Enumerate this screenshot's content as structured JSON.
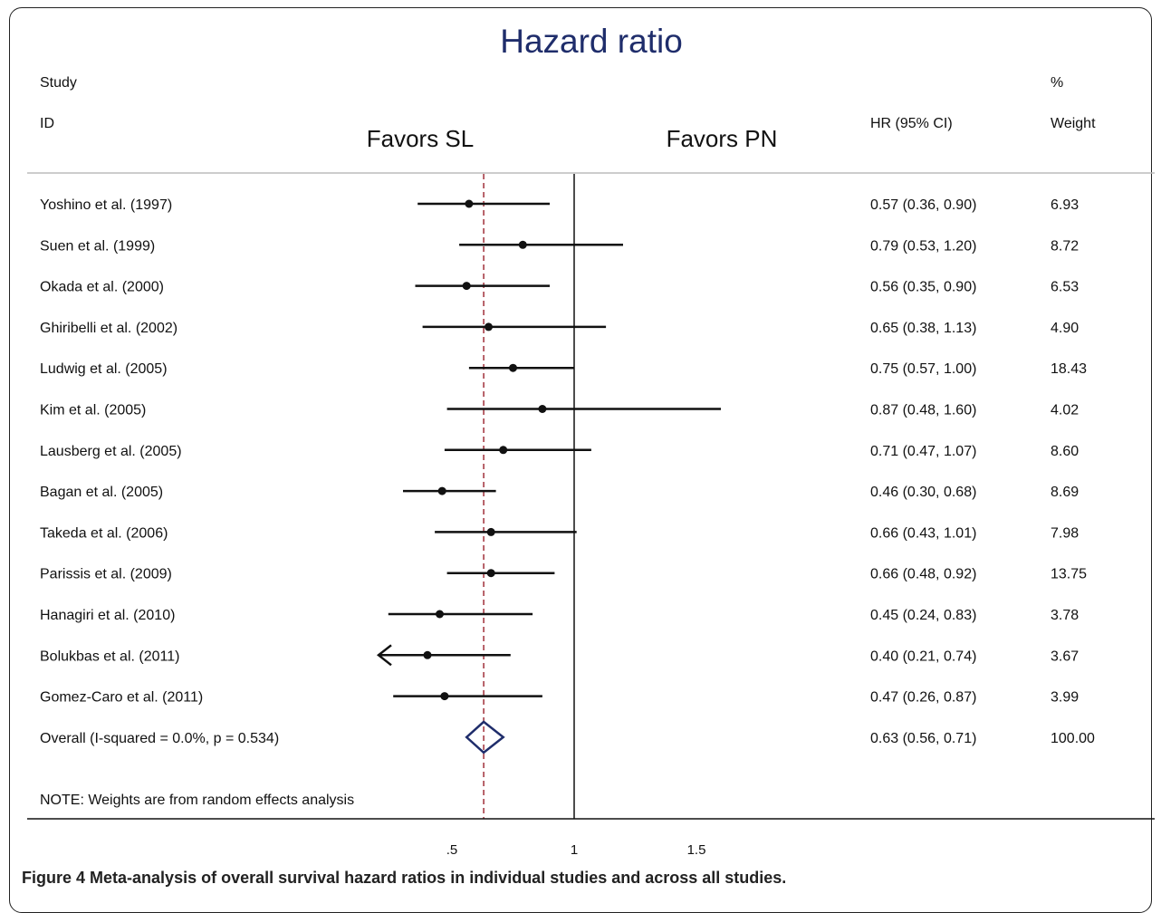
{
  "chart_data": {
    "type": "forest",
    "title": "Hazard ratio",
    "favor_left": "Favors SL",
    "favor_right": "Favors PN",
    "header": {
      "study": "Study",
      "id": "ID",
      "hr_ci": "HR (95% CI)",
      "pct": "%",
      "weight": "Weight"
    },
    "xaxis": {
      "ticks": [
        0.5,
        1,
        1.5
      ],
      "tick_labels": [
        ".5",
        "1",
        "1.5"
      ],
      "min": 0.2,
      "max": 1.6,
      "reference": 1
    },
    "overall_line": 0.63,
    "studies": [
      {
        "label": "Yoshino et al. (1997)",
        "hr": 0.57,
        "lo": 0.36,
        "hi": 0.9,
        "hr_text": "0.57 (0.36, 0.90)",
        "weight": "6.93"
      },
      {
        "label": "Suen et al. (1999)",
        "hr": 0.79,
        "lo": 0.53,
        "hi": 1.2,
        "hr_text": "0.79 (0.53, 1.20)",
        "weight": "8.72"
      },
      {
        "label": "Okada et al. (2000)",
        "hr": 0.56,
        "lo": 0.35,
        "hi": 0.9,
        "hr_text": "0.56 (0.35, 0.90)",
        "weight": "6.53"
      },
      {
        "label": "Ghiribelli et al. (2002)",
        "hr": 0.65,
        "lo": 0.38,
        "hi": 1.13,
        "hr_text": "0.65 (0.38, 1.13)",
        "weight": "4.90"
      },
      {
        "label": "Ludwig et al. (2005)",
        "hr": 0.75,
        "lo": 0.57,
        "hi": 1.0,
        "hr_text": "0.75 (0.57, 1.00)",
        "weight": "18.43"
      },
      {
        "label": "Kim et al. (2005)",
        "hr": 0.87,
        "lo": 0.48,
        "hi": 1.6,
        "hr_text": "0.87 (0.48, 1.60)",
        "weight": "4.02"
      },
      {
        "label": "Lausberg et al. (2005)",
        "hr": 0.71,
        "lo": 0.47,
        "hi": 1.07,
        "hr_text": "0.71 (0.47, 1.07)",
        "weight": "8.60"
      },
      {
        "label": "Bagan et al. (2005)",
        "hr": 0.46,
        "lo": 0.3,
        "hi": 0.68,
        "hr_text": "0.46 (0.30, 0.68)",
        "weight": "8.69"
      },
      {
        "label": "Takeda et al. (2006)",
        "hr": 0.66,
        "lo": 0.43,
        "hi": 1.01,
        "hr_text": "0.66 (0.43, 1.01)",
        "weight": "7.98"
      },
      {
        "label": "Parissis et al. (2009)",
        "hr": 0.66,
        "lo": 0.48,
        "hi": 0.92,
        "hr_text": "0.66 (0.48, 0.92)",
        "weight": "13.75"
      },
      {
        "label": "Hanagiri et al. (2010)",
        "hr": 0.45,
        "lo": 0.24,
        "hi": 0.83,
        "hr_text": "0.45 (0.24, 0.83)",
        "weight": "3.78"
      },
      {
        "label": "Bolukbas et al. (2011)",
        "hr": 0.4,
        "lo": 0.21,
        "hi": 0.74,
        "hr_text": "0.40 (0.21, 0.74)",
        "weight": "3.67",
        "arrow_left": true
      },
      {
        "label": "Gomez-Caro et al. (2011)",
        "hr": 0.47,
        "lo": 0.26,
        "hi": 0.87,
        "hr_text": "0.47 (0.26, 0.87)",
        "weight": "3.99"
      }
    ],
    "overall": {
      "label": "Overall  (I-squared = 0.0%, p = 0.534)",
      "hr": 0.63,
      "lo": 0.56,
      "hi": 0.71,
      "hr_text": "0.63 (0.56, 0.71)",
      "weight": "100.00"
    },
    "note": "NOTE: Weights are from random effects analysis"
  },
  "caption": {
    "label": "Figure 4",
    "text": "Meta-analysis of overall survival hazard ratios in individual studies and across all studies."
  }
}
